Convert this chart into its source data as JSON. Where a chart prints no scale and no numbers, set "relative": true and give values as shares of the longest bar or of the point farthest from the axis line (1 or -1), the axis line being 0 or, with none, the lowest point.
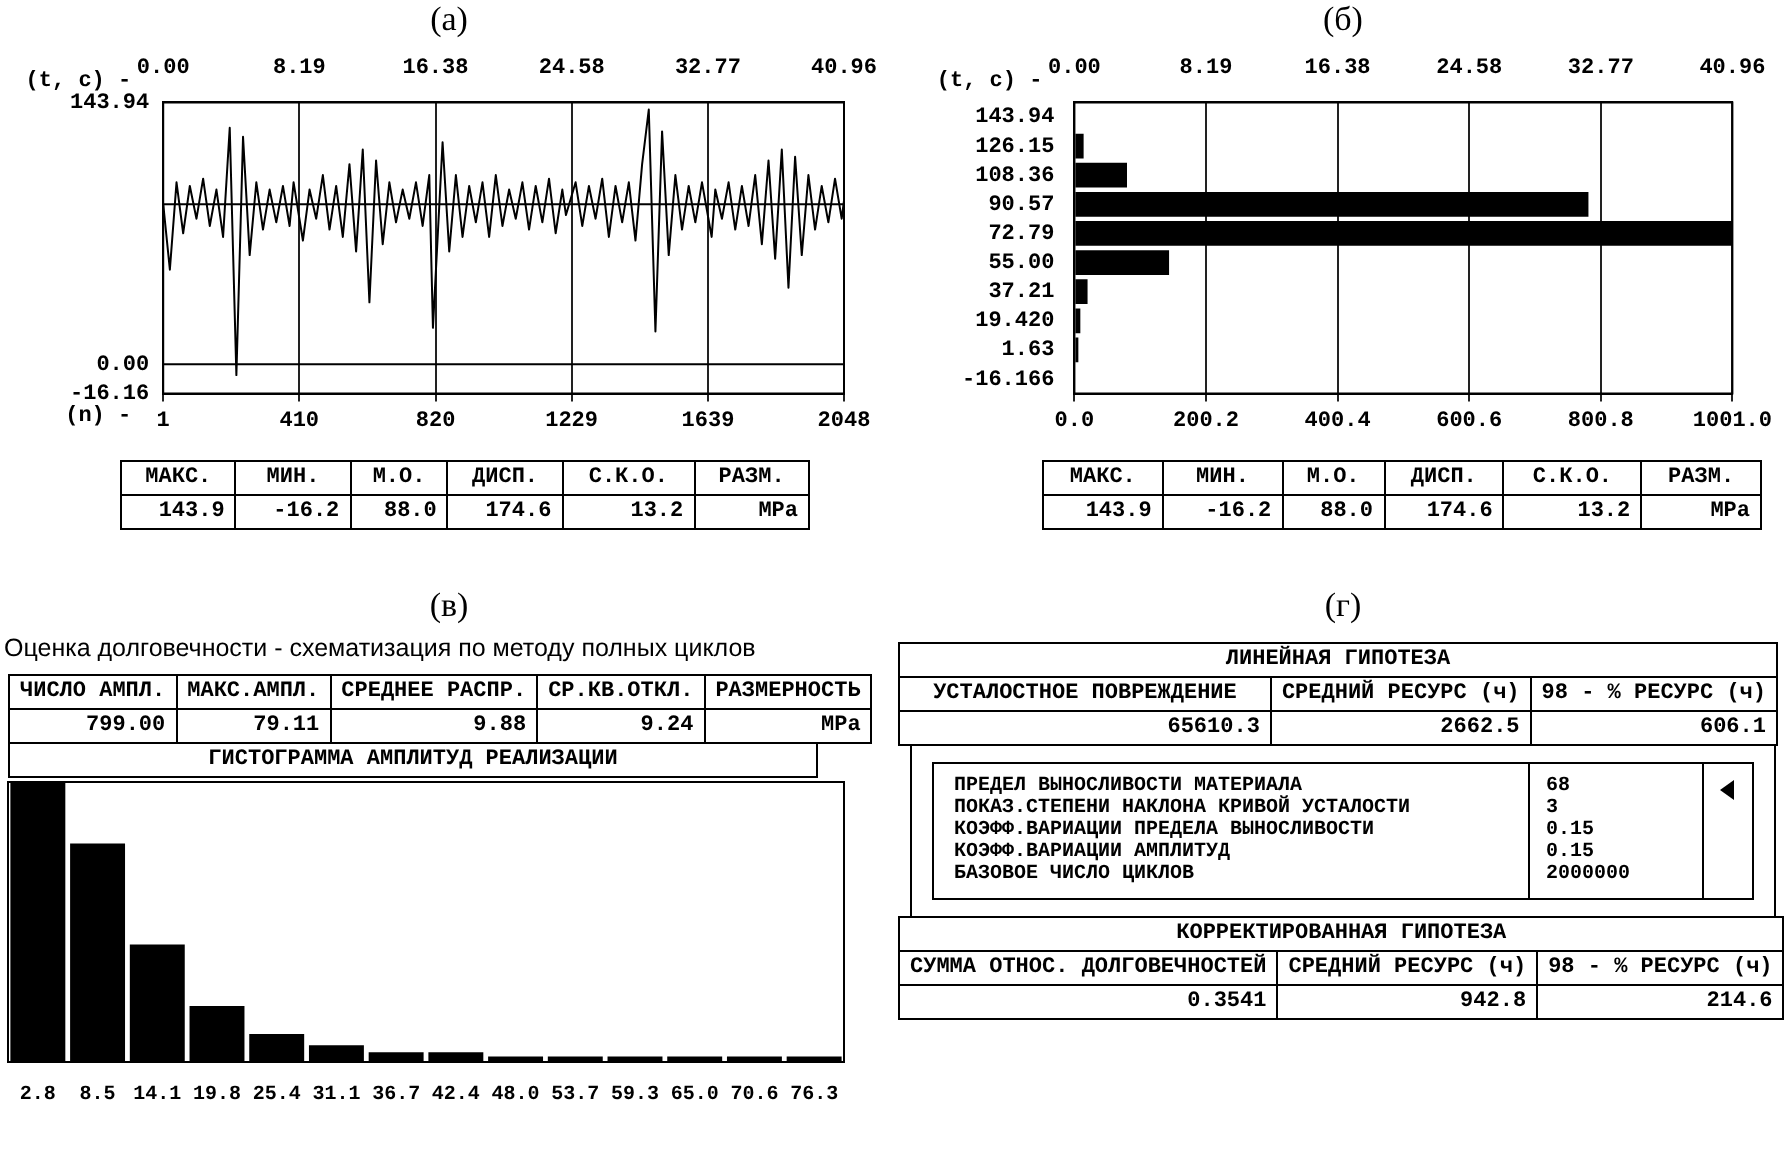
{
  "chart_data": [
    {
      "type": "line",
      "title": "(а)",
      "xlabel": "(n) -",
      "x2label": "(t, c) -",
      "x": [
        1,
        21,
        41,
        61,
        81,
        101,
        121,
        141,
        161,
        181,
        201,
        221,
        241,
        261,
        281,
        301,
        321,
        341,
        361,
        381,
        393,
        421,
        441,
        461,
        481,
        501,
        521,
        541,
        561,
        581,
        601,
        621,
        641,
        661,
        681,
        701,
        721,
        741,
        761,
        781,
        801,
        812,
        841,
        861,
        881,
        901,
        921,
        941,
        961,
        981,
        1001,
        1021,
        1041,
        1061,
        1081,
        1101,
        1121,
        1141,
        1161,
        1181,
        1201,
        1212,
        1241,
        1261,
        1281,
        1301,
        1321,
        1341,
        1361,
        1381,
        1401,
        1421,
        1441,
        1461,
        1481,
        1501,
        1521,
        1541,
        1561,
        1581,
        1601,
        1621,
        1650,
        1661,
        1681,
        1701,
        1721,
        1741,
        1761,
        1781,
        1801,
        1821,
        1841,
        1861,
        1881,
        1901,
        1921,
        1941,
        1961,
        1981,
        2001,
        2021,
        2041,
        2048
      ],
      "series": [
        {
          "color": "#000000",
          "values": [
            88,
            52,
            100,
            72,
            98,
            80,
            102,
            76,
            96,
            70,
            130,
            -6,
            125,
            60,
            100,
            74,
            96,
            78,
            98,
            76,
            100,
            68,
            96,
            80,
            104,
            74,
            98,
            70,
            110,
            62,
            118,
            34,
            112,
            66,
            100,
            78,
            96,
            80,
            100,
            76,
            104,
            20,
            122,
            62,
            104,
            70,
            98,
            78,
            100,
            70,
            104,
            76,
            96,
            80,
            100,
            74,
            98,
            78,
            102,
            72,
            96,
            82,
            100,
            76,
            98,
            80,
            102,
            70,
            98,
            78,
            100,
            68,
            110,
            140,
            18,
            128,
            60,
            104,
            74,
            98,
            78,
            100,
            70,
            96,
            80,
            100,
            74,
            98,
            76,
            104,
            66,
            112,
            58,
            118,
            42,
            114,
            60,
            104,
            74,
            98,
            78,
            102,
            80,
            90
          ]
        }
      ],
      "xlim": [
        1,
        2048
      ],
      "xticks": [
        1,
        410,
        820,
        1229,
        1639,
        2048
      ],
      "x2lim": [
        0,
        40.96
      ],
      "x2ticks": [
        {
          "value": 0,
          "label": "0.00"
        },
        8.19,
        16.38,
        24.58,
        32.77,
        40.96
      ],
      "ylim": [
        -16.16,
        143.94
      ],
      "yticks": [
        -16.16,
        {
          "value": 0,
          "label": "0.00"
        },
        143.94
      ],
      "grid": "x",
      "marker": "none",
      "ref_lines": [
        {
          "axis": "y",
          "value": 0
        },
        {
          "axis": "y",
          "value": 88
        }
      ],
      "annotations": [
        "МАКС.",
        "МИН.",
        "М.О.",
        "ДИСП.",
        "С.К.О.",
        "РАЗМ.",
        "143.9",
        "-16.2",
        "88.0",
        "174.6",
        "13.2",
        "MPa"
      ]
    },
    {
      "type": "bar",
      "orientation": "horizontal",
      "title": "(б)",
      "x2label": "(t, c) -",
      "categories": [
        "143.94",
        "126.15",
        "108.36",
        "90.57",
        "72.79",
        "55.00",
        "37.21",
        "19.420",
        "1.63",
        "-16.166"
      ],
      "series": [
        {
          "color": "#000000",
          "values": [
            null,
            14,
            80,
            782,
            1001,
            144,
            20,
            9,
            6,
            null
          ]
        }
      ],
      "xlim": [
        0,
        1001
      ],
      "xticks": [
        {
          "value": 0,
          "label": "0.0"
        },
        200.2,
        400.4,
        600.6,
        800.8,
        {
          "value": 1001,
          "label": "1001.0"
        }
      ],
      "x2lim": [
        0,
        40.96
      ],
      "x2ticks": [
        {
          "value": 0,
          "label": "0.00"
        },
        8.19,
        16.38,
        24.58,
        32.77,
        40.96
      ],
      "grid": "x",
      "annotations": [
        "МАКС.",
        "МИН.",
        "М.О.",
        "ДИСП.",
        "С.К.О.",
        "РАЗМ.",
        "143.9",
        "-16.2",
        "88.0",
        "174.6",
        "13.2",
        "MPa"
      ]
    },
    {
      "type": "bar",
      "title": "(в)",
      "subtitle": "Оценка долговечности - схематизация по методу полных циклов",
      "categories": [
        "2.8",
        "8.5",
        "14.1",
        "19.8",
        "25.4",
        "31.1",
        "36.7",
        "42.4",
        "48.0",
        "53.7",
        "59.3",
        "65.0",
        "70.6",
        "76.3"
      ],
      "series": [
        {
          "color": "#000000",
          "values": [
            1,
            0.78,
            0.42,
            0.2,
            0.1,
            0.06,
            0.035,
            0.035,
            0.02,
            0.02,
            0.02,
            0.02,
            0.02,
            0.02
          ]
        }
      ],
      "relative": true,
      "annotations": [
        "ЧИСЛО АМПЛ.",
        "МАКС.АМПЛ.",
        "СРЕДНЕЕ РАСПР.",
        "СР.КВ.ОТКЛ.",
        "РАЗМЕРНОСТЬ",
        "799.00",
        "79.11",
        "9.88",
        "9.24",
        "MPa",
        "ГИСТОГРАММА АМПЛИТУД РЕАЛИЗАЦИИ"
      ]
    },
    {
      "type": "other",
      "title": "(г)",
      "annotations": [
        "ЛИНЕЙНАЯ ГИПОТЕЗА",
        "УСТАЛОСТНОЕ ПОВРЕЖДЕНИЕ",
        "СРЕДНИЙ РЕСУРС (ч)",
        "98 - % РЕСУРС (ч)",
        "65610.3",
        "2662.5",
        "606.1",
        "ПРЕДЕЛ ВЫНОСЛИВОСТИ МАТЕРИАЛА",
        "ПОКАЗ.СТЕПЕНИ НАКЛОНА КРИВОЙ УСТАЛОСТИ",
        "КОЭФФ.ВАРИАЦИИ ПРЕДЕЛА ВЫНОСЛИВОСТИ",
        "КОЭФФ.ВАРИАЦИИ АМПЛИТУД",
        "БАЗОВОЕ ЧИСЛО ЦИКЛОВ",
        "68",
        "3",
        "0.15",
        "0.15",
        "2000000",
        "КОРРЕКТИРОВАННАЯ ГИПОТЕЗА",
        "СУММА ОТНОС. ДОЛГОВЕЧНОСТЕЙ",
        "СРЕДНИЙ РЕСУРС (ч)",
        "98 - % РЕСУРС (ч)",
        "0.3541",
        "942.8",
        "214.6"
      ]
    }
  ]
}
